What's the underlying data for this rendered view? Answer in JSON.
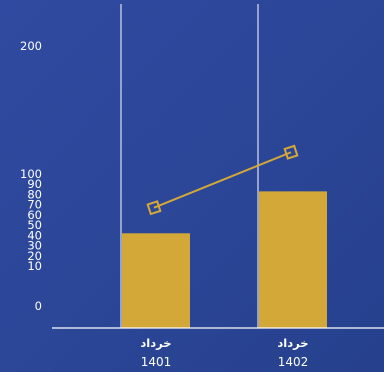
{
  "chart_data": {
    "type": "bar",
    "categories": [
      {
        "month": "خرداد",
        "year": "1401"
      },
      {
        "month": "خرداد",
        "year": "1402"
      }
    ],
    "series": [
      {
        "type": "bar",
        "values": [
          42,
          83
        ],
        "color": "#d4a838"
      },
      {
        "type": "line",
        "values": [
          67,
          117
        ],
        "color": "#d4a838",
        "marker": "hollow-square"
      }
    ],
    "yticks": [
      0,
      10,
      20,
      30,
      40,
      50,
      60,
      70,
      80,
      90,
      100,
      200
    ],
    "grid": "vertical lines at category boundaries",
    "colors": {
      "background": "#2b4596",
      "axis": "#ffffff",
      "bar": "#d4a838",
      "text": "#ffffff"
    }
  }
}
